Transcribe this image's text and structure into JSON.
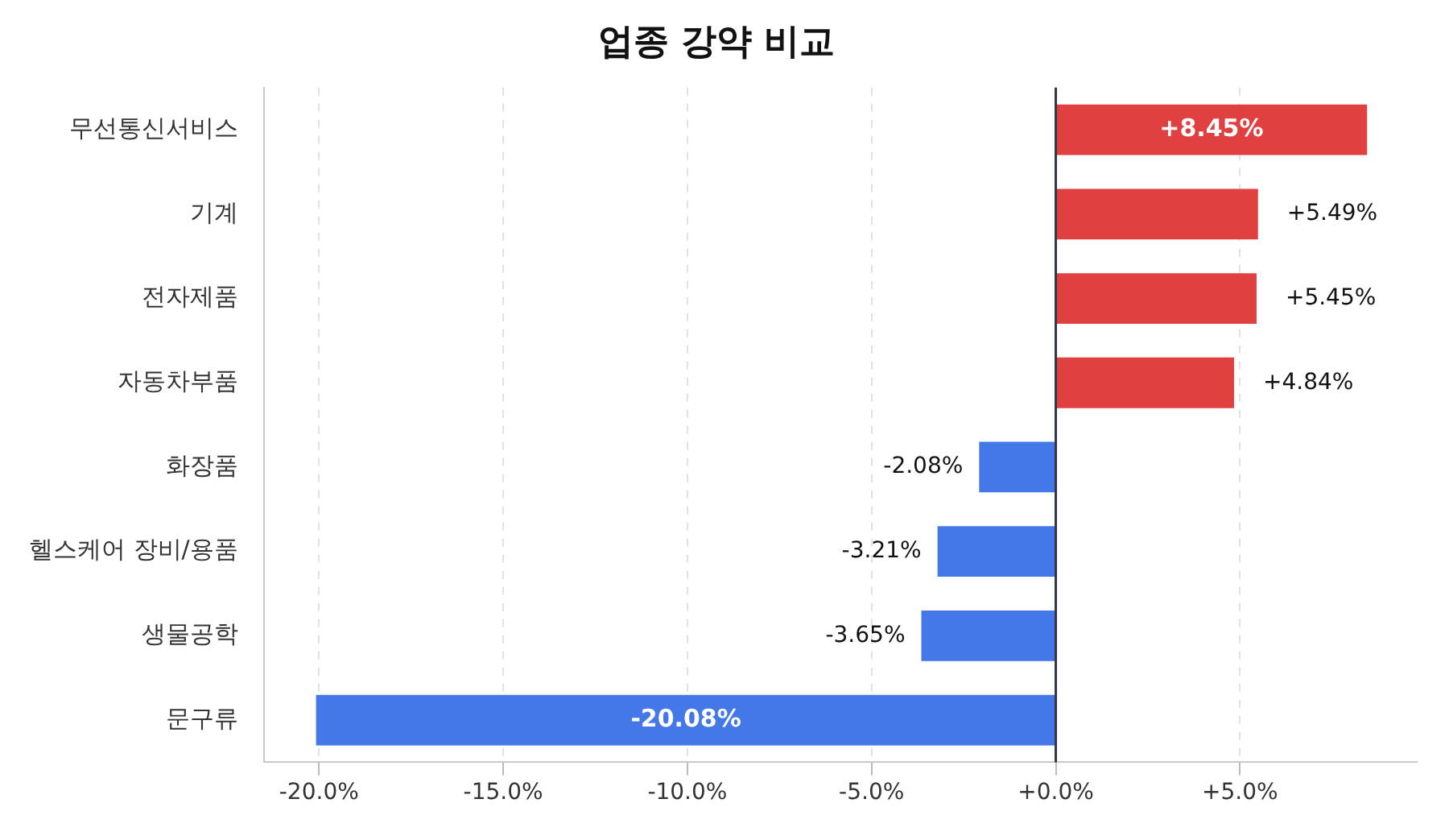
{
  "chart_data": {
    "type": "bar",
    "orientation": "horizontal",
    "title": "업종 강약 비교",
    "categories": [
      "무선통신서비스",
      "기계",
      "전자제품",
      "자동차부품",
      "화장품",
      "헬스케어 장비/용품",
      "생물공학",
      "문구류"
    ],
    "values": [
      8.45,
      5.49,
      5.45,
      4.84,
      -2.08,
      -3.21,
      -3.65,
      -20.08
    ],
    "colors": [
      "#e04040",
      "#e04040",
      "#e04040",
      "#e04040",
      "#4477e8",
      "#4477e8",
      "#4477e8",
      "#4477e8"
    ],
    "value_labels": [
      "+8.45%",
      "+5.49%",
      "+5.45%",
      "+4.84%",
      "-2.08%",
      "-3.21%",
      "-3.65%",
      "-20.08%"
    ],
    "xlim": [
      -21.5,
      9.8
    ],
    "xticks": [
      {
        "value": -20,
        "label": "-20.0%"
      },
      {
        "value": -15,
        "label": "-15.0%"
      },
      {
        "value": -10,
        "label": "-10.0%"
      },
      {
        "value": -5,
        "label": "-5.0%"
      },
      {
        "value": 0,
        "label": "+0.0%"
      },
      {
        "value": 5,
        "label": "+5.0%"
      }
    ],
    "ref_lines": [
      {
        "axis": "x",
        "value": 0,
        "color": "#2d3748"
      }
    ],
    "grid": "x",
    "legend": false
  }
}
